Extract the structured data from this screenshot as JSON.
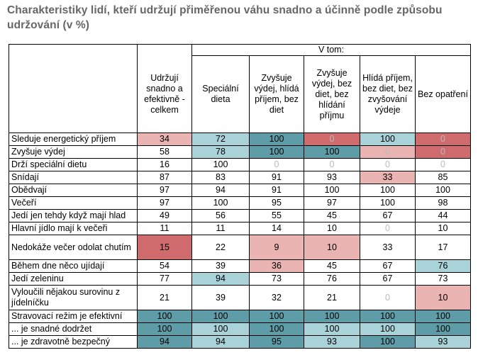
{
  "title": "Charakteristiky lidí, kteří udržují přiměřenou váhu snadno a účinně podle způsobu udržování (v %)",
  "colors": {
    "strong_red": "#cf6b6d",
    "light_red": "#e9b4b2",
    "strong_teal": "#5e9da7",
    "light_teal": "#a9d2d9"
  },
  "table": {
    "group_header": "V tom:",
    "columns": [
      "Udržují snadno a efektivně - celkem",
      "Speciální dieta",
      "Zvyšuje výdej, hlídá příjem, bez diet",
      "Zvyšuje výdej, bez diet, bez hlídání příjmu",
      "Hlídá příjem, bez diet, bez zvyšování výdeje",
      "Bez opatření"
    ],
    "rows": [
      {
        "label": "Sleduje energetický příjem",
        "values": [
          "34",
          "72",
          "100",
          "0",
          "100",
          "0"
        ]
      },
      {
        "label": "Zvyšuje výdej",
        "values": [
          "58",
          "78",
          "100",
          "100",
          "0",
          "0"
        ]
      },
      {
        "label": "Drží speciální dietu",
        "values": [
          "16",
          "100",
          "0",
          "0",
          "0",
          "0"
        ]
      },
      {
        "label": "Snídají",
        "values": [
          "87",
          "83",
          "91",
          "93",
          "33",
          "85"
        ]
      },
      {
        "label": "Obědvají",
        "values": [
          "97",
          "94",
          "91",
          "100",
          "100",
          "100"
        ]
      },
      {
        "label": "Večeří",
        "values": [
          "97",
          "100",
          "95",
          "97",
          "100",
          "98"
        ]
      },
      {
        "label": "Jedí jen tehdy když mají hlad",
        "values": [
          "49",
          "56",
          "55",
          "45",
          "67",
          "44"
        ]
      },
      {
        "label": "Hlavní jídlo mají k večeři",
        "values": [
          "11",
          "11",
          "14",
          "10",
          "0",
          "10"
        ]
      },
      {
        "label": "Nedokáže večer odolat chutím",
        "values": [
          "15",
          "22",
          "9",
          "10",
          "33",
          "17"
        ]
      },
      {
        "label": "Během dne něco ujídají",
        "values": [
          "54",
          "39",
          "36",
          "45",
          "67",
          "76"
        ]
      },
      {
        "label": "Jedí zeleninu",
        "values": [
          "77",
          "94",
          "73",
          "76",
          "67",
          "73"
        ]
      },
      {
        "label": "Vyloučili nějakou surovinu z jídelníčku",
        "values": [
          "21",
          "39",
          "32",
          "21",
          "0",
          "10"
        ]
      },
      {
        "label": "Stravovací režim je efektivní",
        "values": [
          "100",
          "100",
          "100",
          "100",
          "100",
          "100"
        ]
      },
      {
        "label": "... je snadné dodržet",
        "values": [
          "100",
          "100",
          "100",
          "100",
          "100",
          "100"
        ]
      },
      {
        "label": "... je zdravotně bezpečný",
        "values": [
          "94",
          "94",
          "95",
          "93",
          "100",
          "93"
        ]
      }
    ]
  }
}
